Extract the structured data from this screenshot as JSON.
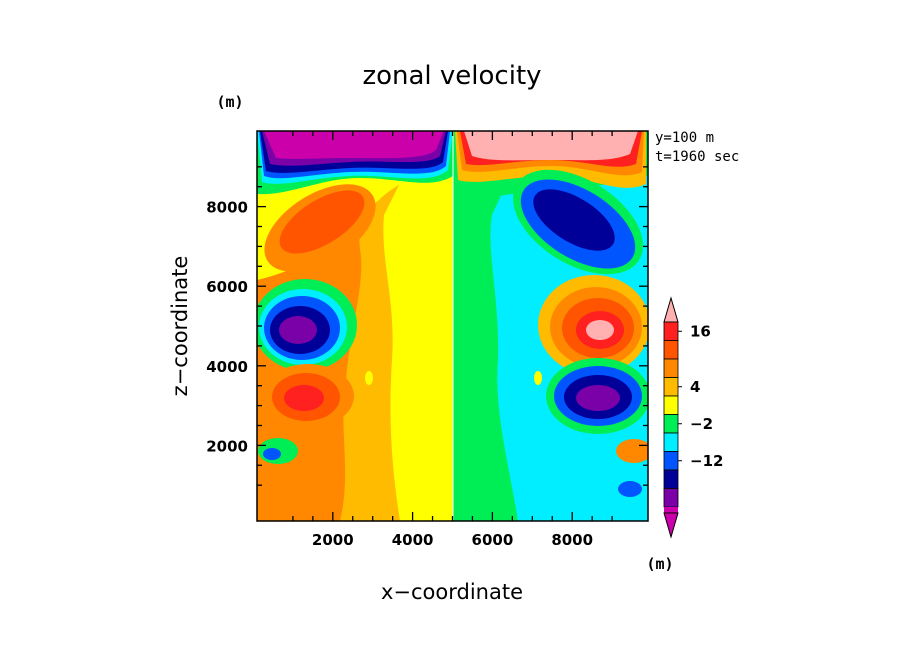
{
  "chart_data": {
    "type": "heatmap",
    "title": "zonal velocity",
    "xlabel": "x−coordinate",
    "ylabel": "z−coordinate",
    "x_unit": "(m)",
    "y_unit": "(m)",
    "xlim": [
      100,
      9900
    ],
    "ylim": [
      100,
      9900
    ],
    "x_ticks": [
      "2000",
      "4000",
      "6000",
      "8000"
    ],
    "y_ticks": [
      "2000",
      "4000",
      "6000",
      "8000"
    ],
    "annotations": [
      "y=100 m",
      "t=1960 sec"
    ],
    "colorbar": {
      "unit": "(m)",
      "levels_labeled": [
        "16",
        "4",
        "−2",
        "−12"
      ],
      "colors_top_to_bottom": [
        "#ffb0b0",
        "#ff2020",
        "#ff5500",
        "#ff8800",
        "#ffbb00",
        "#ffff00",
        "#00ee55",
        "#00eeff",
        "#0055ff",
        "#000099",
        "#7a00a8",
        "#cc00aa"
      ]
    }
  }
}
